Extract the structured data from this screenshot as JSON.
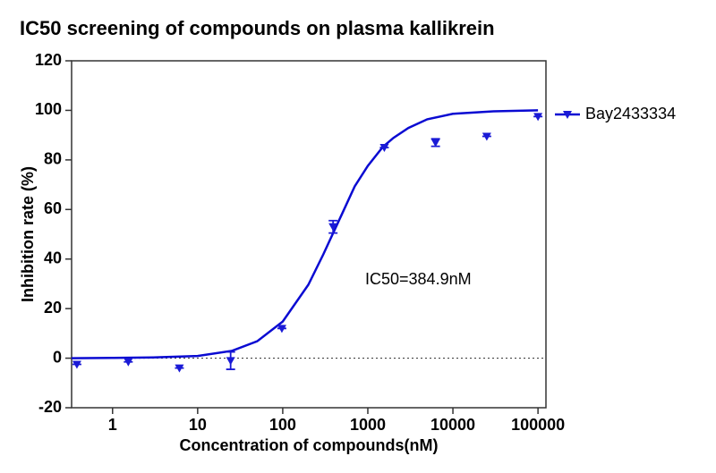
{
  "chart_data": {
    "type": "scatter",
    "title": "IC50 screening of compounds on plasma kallikrein",
    "x_label": "Concentration of compounds(nM)",
    "y_label": "Inhibition rate (%)",
    "x_scale": "log",
    "xlim": [
      0.33,
      124000
    ],
    "xticks": [
      1,
      10,
      100,
      1000,
      10000,
      100000
    ],
    "ylim": [
      -20,
      120
    ],
    "yticks": [
      -20,
      0,
      20,
      40,
      60,
      80,
      100,
      120
    ],
    "reference_line": 0,
    "annotation": "IC50=384.9nM",
    "series": [
      {
        "name": "Bay2433334",
        "color": "#1a1ad6",
        "x": [
          0.381,
          1.53,
          6.1,
          24.41,
          97.66,
          390.6,
          1562.5,
          6250,
          25000,
          100000
        ],
        "values": [
          -2.5,
          -1.5,
          -4,
          -1,
          12,
          53,
          85,
          87,
          89.5,
          97.5
        ],
        "errors": [
          0,
          0,
          0,
          3.5,
          0,
          2.5,
          0,
          1.5,
          0,
          0
        ]
      }
    ],
    "curve": {
      "color": "#0a0ad2",
      "x": [
        0.33,
        1,
        3,
        10,
        25,
        50,
        100,
        200,
        300,
        385,
        500,
        700,
        1000,
        1500,
        2000,
        3000,
        5000,
        10000,
        30000,
        100000
      ],
      "values": [
        0,
        0.1,
        0.3,
        0.9,
        2.9,
        6.8,
        14.8,
        29.6,
        41.9,
        50,
        58.4,
        69.3,
        77.6,
        85.2,
        88.9,
        92.9,
        96.4,
        98.6,
        99.6,
        100
      ]
    }
  }
}
